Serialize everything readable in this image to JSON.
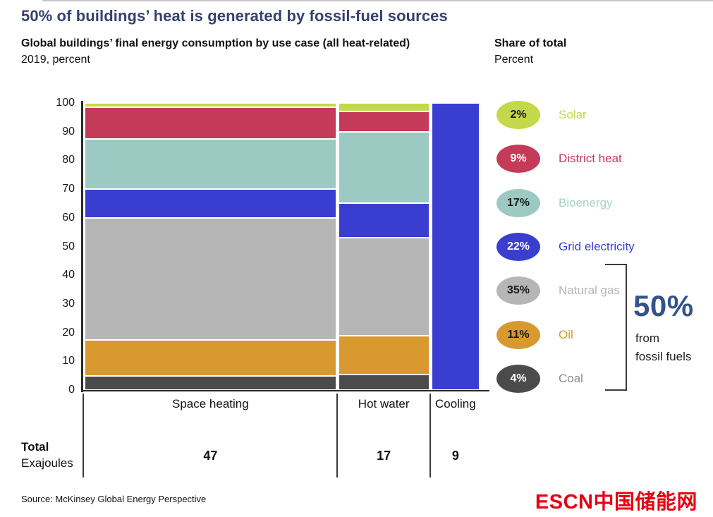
{
  "header": {
    "title": "50% of buildings’ heat is generated by fossil-fuel sources",
    "subtitle_line1": "Global buildings’ final energy consumption by use case (all heat-related)",
    "subtitle_line2": "2019, percent"
  },
  "legend": {
    "title": "Share of total",
    "subtitle": "Percent",
    "items": [
      {
        "share": "2%",
        "label": "Solar",
        "color": "#c3d84a",
        "oval_text_color": "#1a1a1a",
        "label_color": "#c3d84a"
      },
      {
        "share": "9%",
        "label": "District heat",
        "color": "#c53a58",
        "oval_text_color": "#ffffff",
        "label_color": "#c53a58"
      },
      {
        "share": "17%",
        "label": "Bioenergy",
        "color": "#9ccac3",
        "oval_text_color": "#1a1a1a",
        "label_color": "#a8d0ca"
      },
      {
        "share": "22%",
        "label": "Grid electricity",
        "color": "#3a3ed0",
        "oval_text_color": "#ffffff",
        "label_color": "#3a3ed0"
      },
      {
        "share": "35%",
        "label": "Natural gas",
        "color": "#b6b6b6",
        "oval_text_color": "#1a1a1a",
        "label_color": "#b6b6b6"
      },
      {
        "share": "11%",
        "label": "Oil",
        "color": "#d8992e",
        "oval_text_color": "#1a1a1a",
        "label_color": "#d8992e"
      },
      {
        "share": "4%",
        "label": "Coal",
        "color": "#4b4b4b",
        "oval_text_color": "#ffffff",
        "label_color": "#8a8a8a"
      }
    ],
    "bracket": {
      "value": "50%",
      "caption_line1": "from",
      "caption_line2": "fossil fuels",
      "value_color": "#33548a"
    }
  },
  "chart_data": {
    "type": "bar",
    "subtype": "marimekko-stacked-100pct",
    "title": "Global buildings' final energy consumption by use case (all heat-related), 2019, percent",
    "xlabel": "",
    "ylabel": "percent",
    "ylim": [
      0,
      100
    ],
    "ytick_step": 10,
    "grid": false,
    "legend_position": "right",
    "categories": [
      "Space heating",
      "Hot water",
      "Cooling"
    ],
    "totals_exajoules": [
      47,
      17,
      9
    ],
    "totals_label_line1": "Total",
    "totals_label_line2": "Exajoules",
    "bar_widths_proportional_to": "totals_exajoules",
    "stack_order_top_to_bottom": [
      "Solar",
      "District heat",
      "Bioenergy",
      "Grid electricity",
      "Natural gas",
      "Oil",
      "Coal"
    ],
    "series": [
      {
        "name": "Solar",
        "color": "#c3d84a",
        "share_of_total_pct": 2,
        "values": [
          1.5,
          3,
          0
        ]
      },
      {
        "name": "District heat",
        "color": "#c53a58",
        "share_of_total_pct": 9,
        "values": [
          11,
          7,
          0
        ]
      },
      {
        "name": "Bioenergy",
        "color": "#9ccac3",
        "share_of_total_pct": 17,
        "values": [
          17.5,
          25,
          0
        ]
      },
      {
        "name": "Grid electricity",
        "color": "#3a3ed0",
        "share_of_total_pct": 22,
        "values": [
          10,
          12,
          100
        ]
      },
      {
        "name": "Natural gas",
        "color": "#b6b6b6",
        "share_of_total_pct": 35,
        "values": [
          42.5,
          34,
          0
        ]
      },
      {
        "name": "Oil",
        "color": "#d8992e",
        "share_of_total_pct": 11,
        "values": [
          12.5,
          13.5,
          0
        ]
      },
      {
        "name": "Coal",
        "color": "#4b4b4b",
        "share_of_total_pct": 4,
        "values": [
          5,
          5.5,
          0
        ]
      }
    ],
    "annotation": "50% from fossil fuels (Natural gas + Oil + Coal)"
  },
  "footer": {
    "source": "Source: McKinsey Global Energy Perspective",
    "watermark": "ESCN中国储能网"
  }
}
